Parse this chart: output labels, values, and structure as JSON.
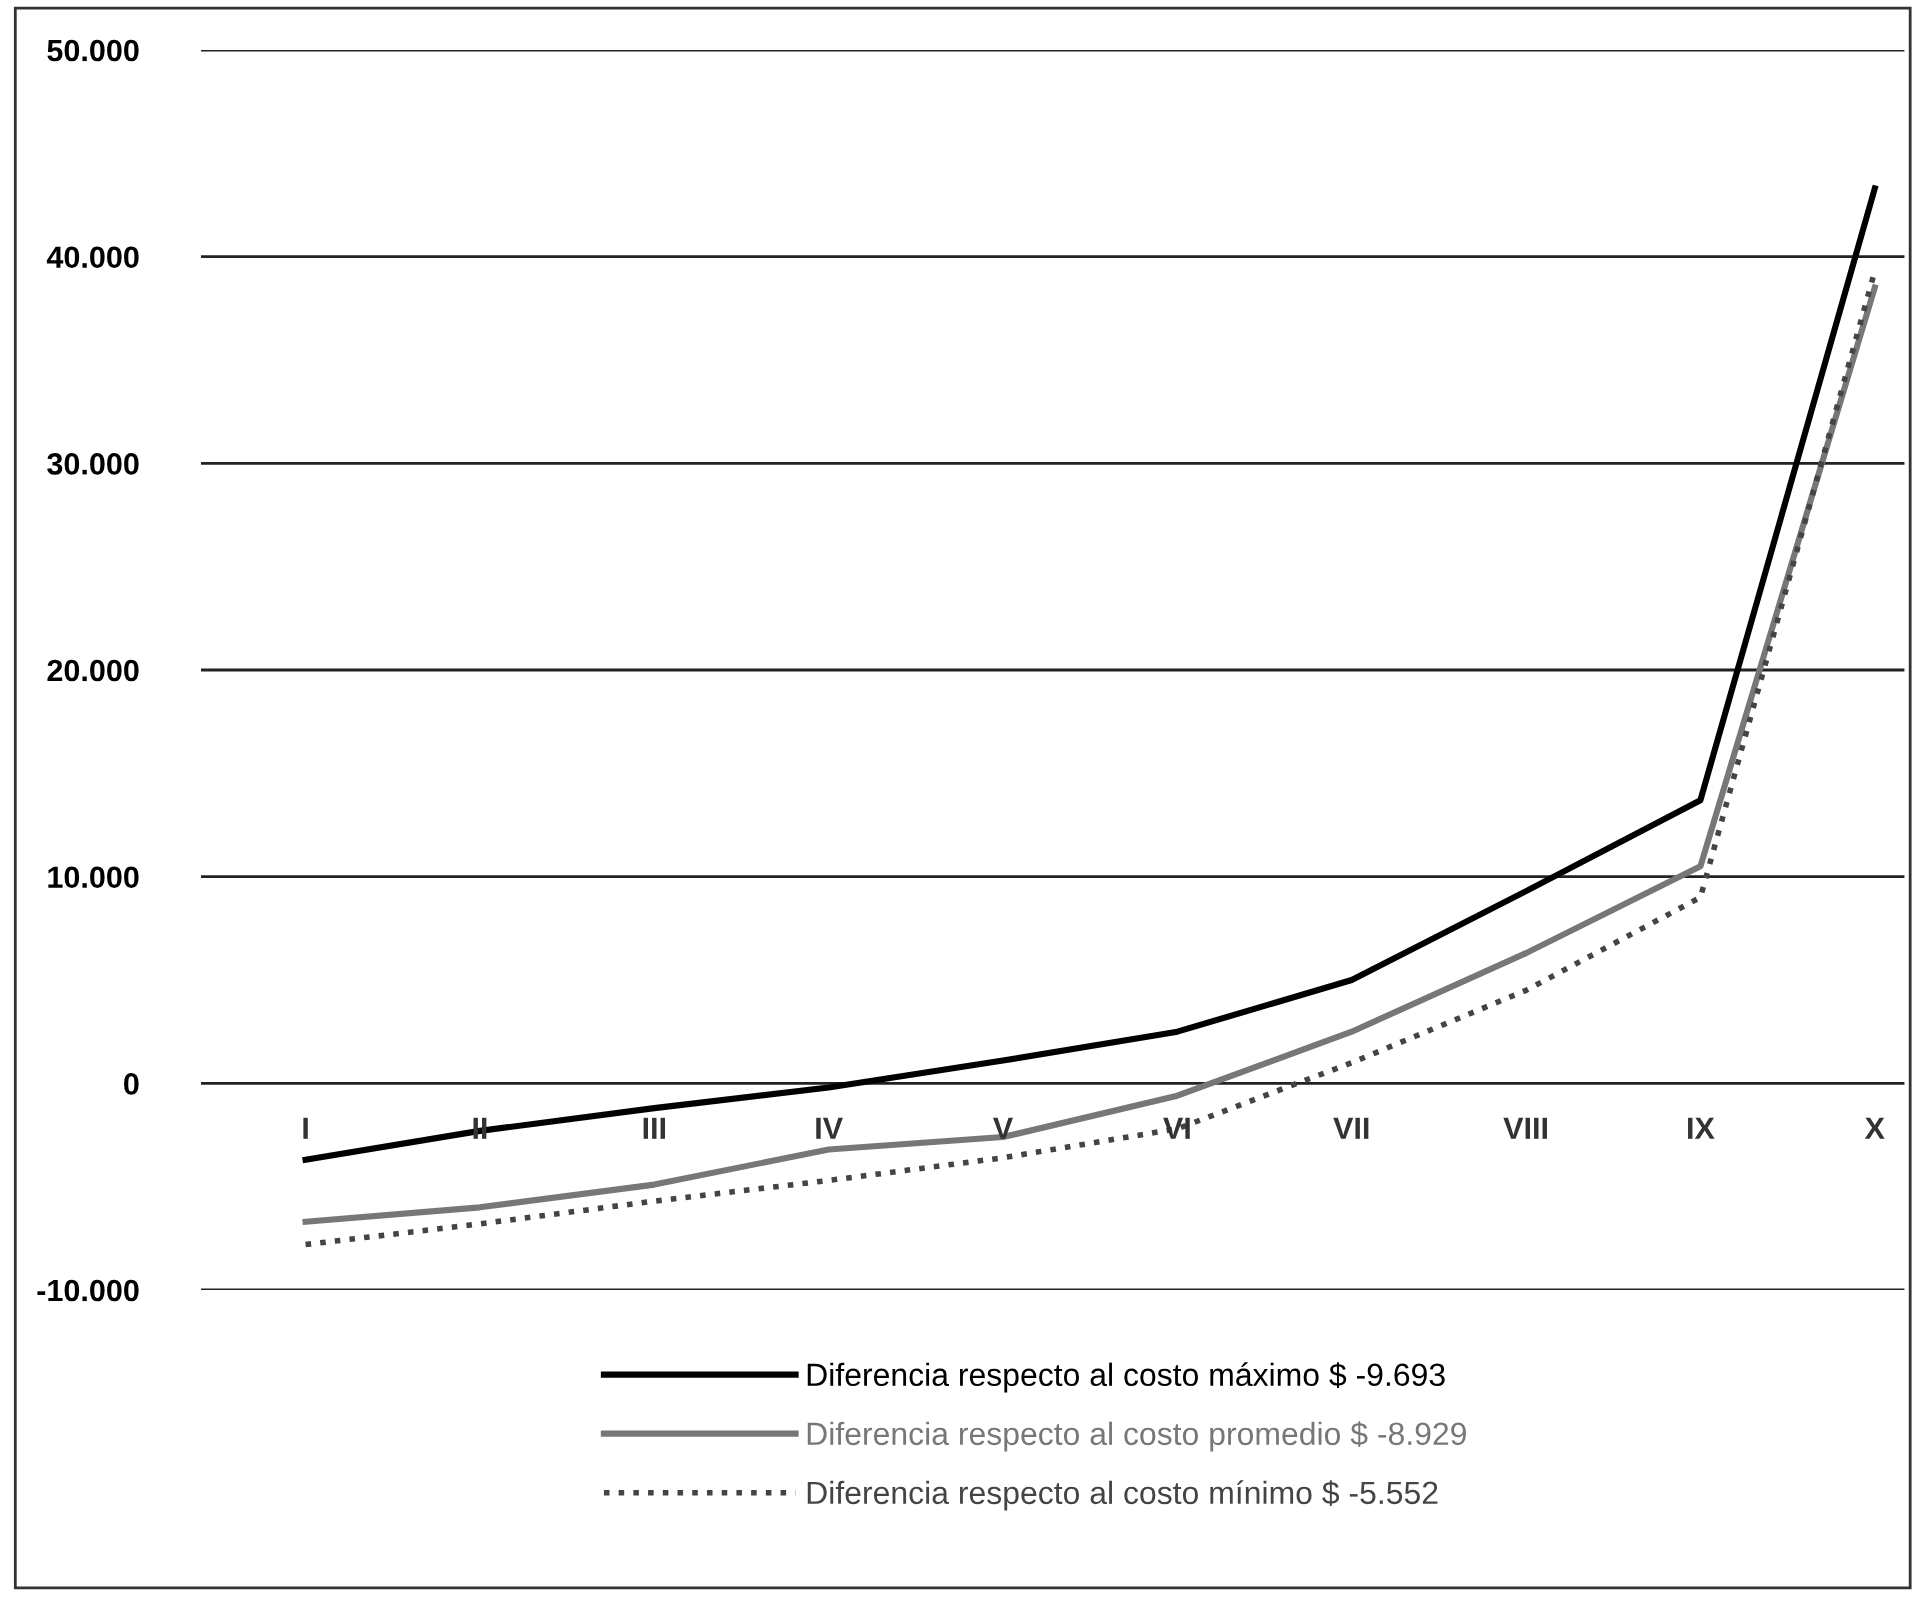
{
  "chart_data": {
    "type": "line",
    "categories": [
      "I",
      "II",
      "III",
      "IV",
      "V",
      "VI",
      "VII",
      "VIII",
      "IX",
      "X"
    ],
    "series": [
      {
        "name": "Diferencia respecto al costo máximo $ -9.693",
        "color": "#000000",
        "line_style": "solid",
        "values": [
          -3700,
          -2300,
          -1200,
          -200,
          1100,
          2500,
          5000,
          9300,
          13700,
          43300
        ]
      },
      {
        "name": "Diferencia respecto al costo promedio $ -8.929",
        "color": "#777777",
        "line_style": "solid",
        "values": [
          -6700,
          -6000,
          -4900,
          -3200,
          -2600,
          -600,
          2500,
          6300,
          10500,
          38500
        ]
      },
      {
        "name": "Diferencia respecto al costo mínimo $ -5.552",
        "color": "#444444",
        "line_style": "dotted",
        "values": [
          -7800,
          -6800,
          -5700,
          -4700,
          -3600,
          -2200,
          1000,
          4500,
          9000,
          39300
        ]
      }
    ],
    "ylim": [
      -10000,
      50000
    ],
    "yticks": [
      {
        "value": -10000,
        "label": "-10.000"
      },
      {
        "value": 0,
        "label": "0"
      },
      {
        "value": 10000,
        "label": "10.000"
      },
      {
        "value": 20000,
        "label": "20.000"
      },
      {
        "value": 30000,
        "label": "30.000"
      },
      {
        "value": 40000,
        "label": "40.000"
      },
      {
        "value": 50000,
        "label": "50.000"
      }
    ],
    "grid": "y",
    "legend": "bottom",
    "marker": "none"
  }
}
